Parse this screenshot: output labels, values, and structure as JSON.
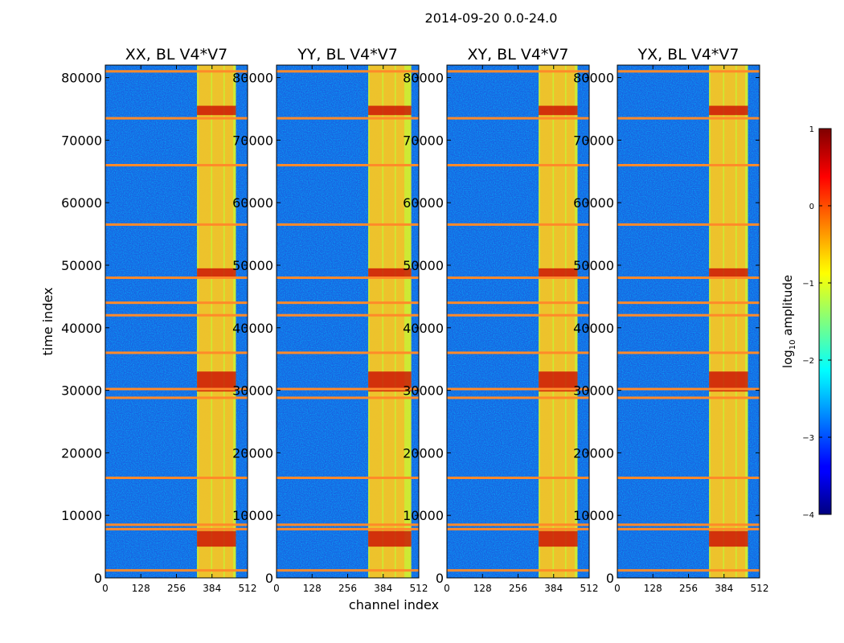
{
  "chart_data": {
    "type": "heatmap",
    "title": "2014-09-20 0.0-24.0",
    "xlabel": "channel index",
    "ylabel": "time index",
    "xlim": [
      0,
      512
    ],
    "ylim": [
      0,
      82000
    ],
    "x_ticks": [
      0,
      128,
      256,
      384,
      512
    ],
    "y_ticks": [
      0,
      10000,
      20000,
      30000,
      40000,
      50000,
      60000,
      70000,
      80000
    ],
    "panels": [
      {
        "title": "XX, BL V4*V7"
      },
      {
        "title": "YY, BL V4*V7"
      },
      {
        "title": "XY, BL V4*V7"
      },
      {
        "title": "YX, BL V4*V7"
      }
    ],
    "colorbar": {
      "label": "log10 amplitude",
      "label_main": "log",
      "label_sub": "10",
      "label_rest": " amplitude",
      "range": [
        -4,
        1
      ],
      "ticks": [
        1,
        0,
        -1,
        -2,
        -3,
        -4
      ],
      "tick_labels": [
        "1",
        "0",
        "−1",
        "−2",
        "−3",
        "−4"
      ],
      "colormap": "jet"
    },
    "rfi_band_channels": [
      [
        330,
        470
      ],
      [
        330,
        485
      ],
      [
        330,
        470
      ],
      [
        330,
        470
      ]
    ],
    "strong_columns_channels": [
      [
        335,
        380
      ],
      [
        385,
        425
      ],
      [
        430,
        460
      ]
    ],
    "horizontal_flag_rows_time": [
      1200,
      7800,
      8500,
      16000,
      28800,
      30200,
      36000,
      42000,
      44000,
      48000,
      56500,
      66000,
      73500,
      81000
    ],
    "strong_event_rows_time": [
      [
        29800,
        33000
      ],
      [
        48000,
        49500
      ],
      [
        5000,
        7500
      ],
      [
        74000,
        75500
      ]
    ]
  }
}
